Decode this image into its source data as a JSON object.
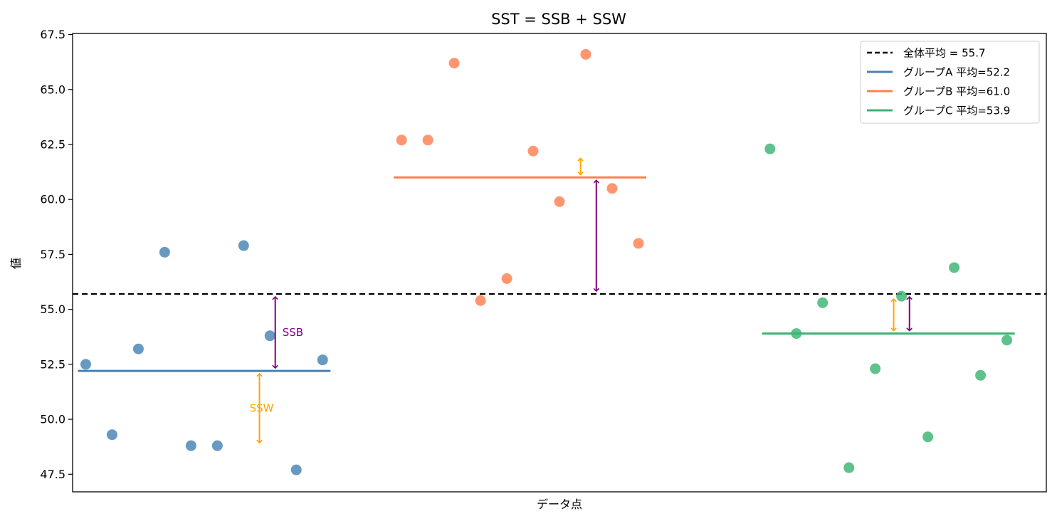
{
  "chart_data": {
    "type": "scatter",
    "title": "SST = SSB + SSW",
    "xlabel": "データ点",
    "ylabel": "値",
    "ylim": [
      46.7,
      67.55
    ],
    "xlim": [
      -0.5,
      36.5
    ],
    "yticks": [
      47.5,
      50.0,
      52.5,
      55.0,
      57.5,
      60.0,
      62.5,
      65.0,
      67.5
    ],
    "ytick_labels": [
      "47.5",
      "50.0",
      "52.5",
      "55.0",
      "57.5",
      "60.0",
      "62.5",
      "65.0",
      "67.5"
    ],
    "grid": false,
    "legend_position": "top-right",
    "overall_mean": {
      "value": 55.7,
      "label": "全体平均 = 55.7",
      "color": "#000000",
      "style": "dashed"
    },
    "groups": [
      {
        "name": "グループA",
        "color": "#4682b4",
        "mean": 52.2,
        "mean_label": "グループA 平均=52.2",
        "x": [
          0,
          1,
          2,
          3,
          4,
          5,
          6,
          7,
          8,
          9
        ],
        "y": [
          52.5,
          49.3,
          53.2,
          57.6,
          48.8,
          48.8,
          57.9,
          53.8,
          47.7,
          52.7
        ]
      },
      {
        "name": "グループB",
        "color": "#ff7f50",
        "mean": 61.0,
        "mean_label": "グループB 平均=61.0",
        "x": [
          12,
          13,
          14,
          15,
          16,
          17,
          18,
          19,
          20,
          21
        ],
        "y": [
          62.7,
          62.7,
          66.2,
          55.4,
          56.4,
          62.2,
          59.9,
          66.6,
          60.5,
          58.0
        ]
      },
      {
        "name": "グループC",
        "color": "#3cb371",
        "mean": 53.9,
        "mean_label": "グループC 平均=53.9",
        "x": [
          26,
          27,
          28,
          29,
          30,
          31,
          32,
          33,
          34,
          35
        ],
        "y": [
          62.3,
          53.9,
          55.3,
          47.8,
          52.3,
          55.6,
          49.2,
          56.9,
          52.0,
          53.6
        ]
      }
    ],
    "annotations": [
      {
        "kind": "ssb",
        "x": 7.2,
        "y1": 55.7,
        "y2": 52.2,
        "color": "#800080",
        "text": "SSB"
      },
      {
        "kind": "ssw",
        "x": 6.6,
        "y1": 52.2,
        "y2": 48.8,
        "color": "#ffa500",
        "text": "SSW"
      },
      {
        "kind": "ssb",
        "x": 19.4,
        "y1": 55.7,
        "y2": 61.0,
        "color": "#800080",
        "text": ""
      },
      {
        "kind": "ssw",
        "x": 18.8,
        "y1": 61.0,
        "y2": 62.0,
        "color": "#ffa500",
        "text": ""
      },
      {
        "kind": "ssb",
        "x": 31.3,
        "y1": 55.7,
        "y2": 53.9,
        "color": "#800080",
        "text": ""
      },
      {
        "kind": "ssw",
        "x": 30.7,
        "y1": 53.9,
        "y2": 55.6,
        "color": "#ffa500",
        "text": ""
      }
    ]
  }
}
